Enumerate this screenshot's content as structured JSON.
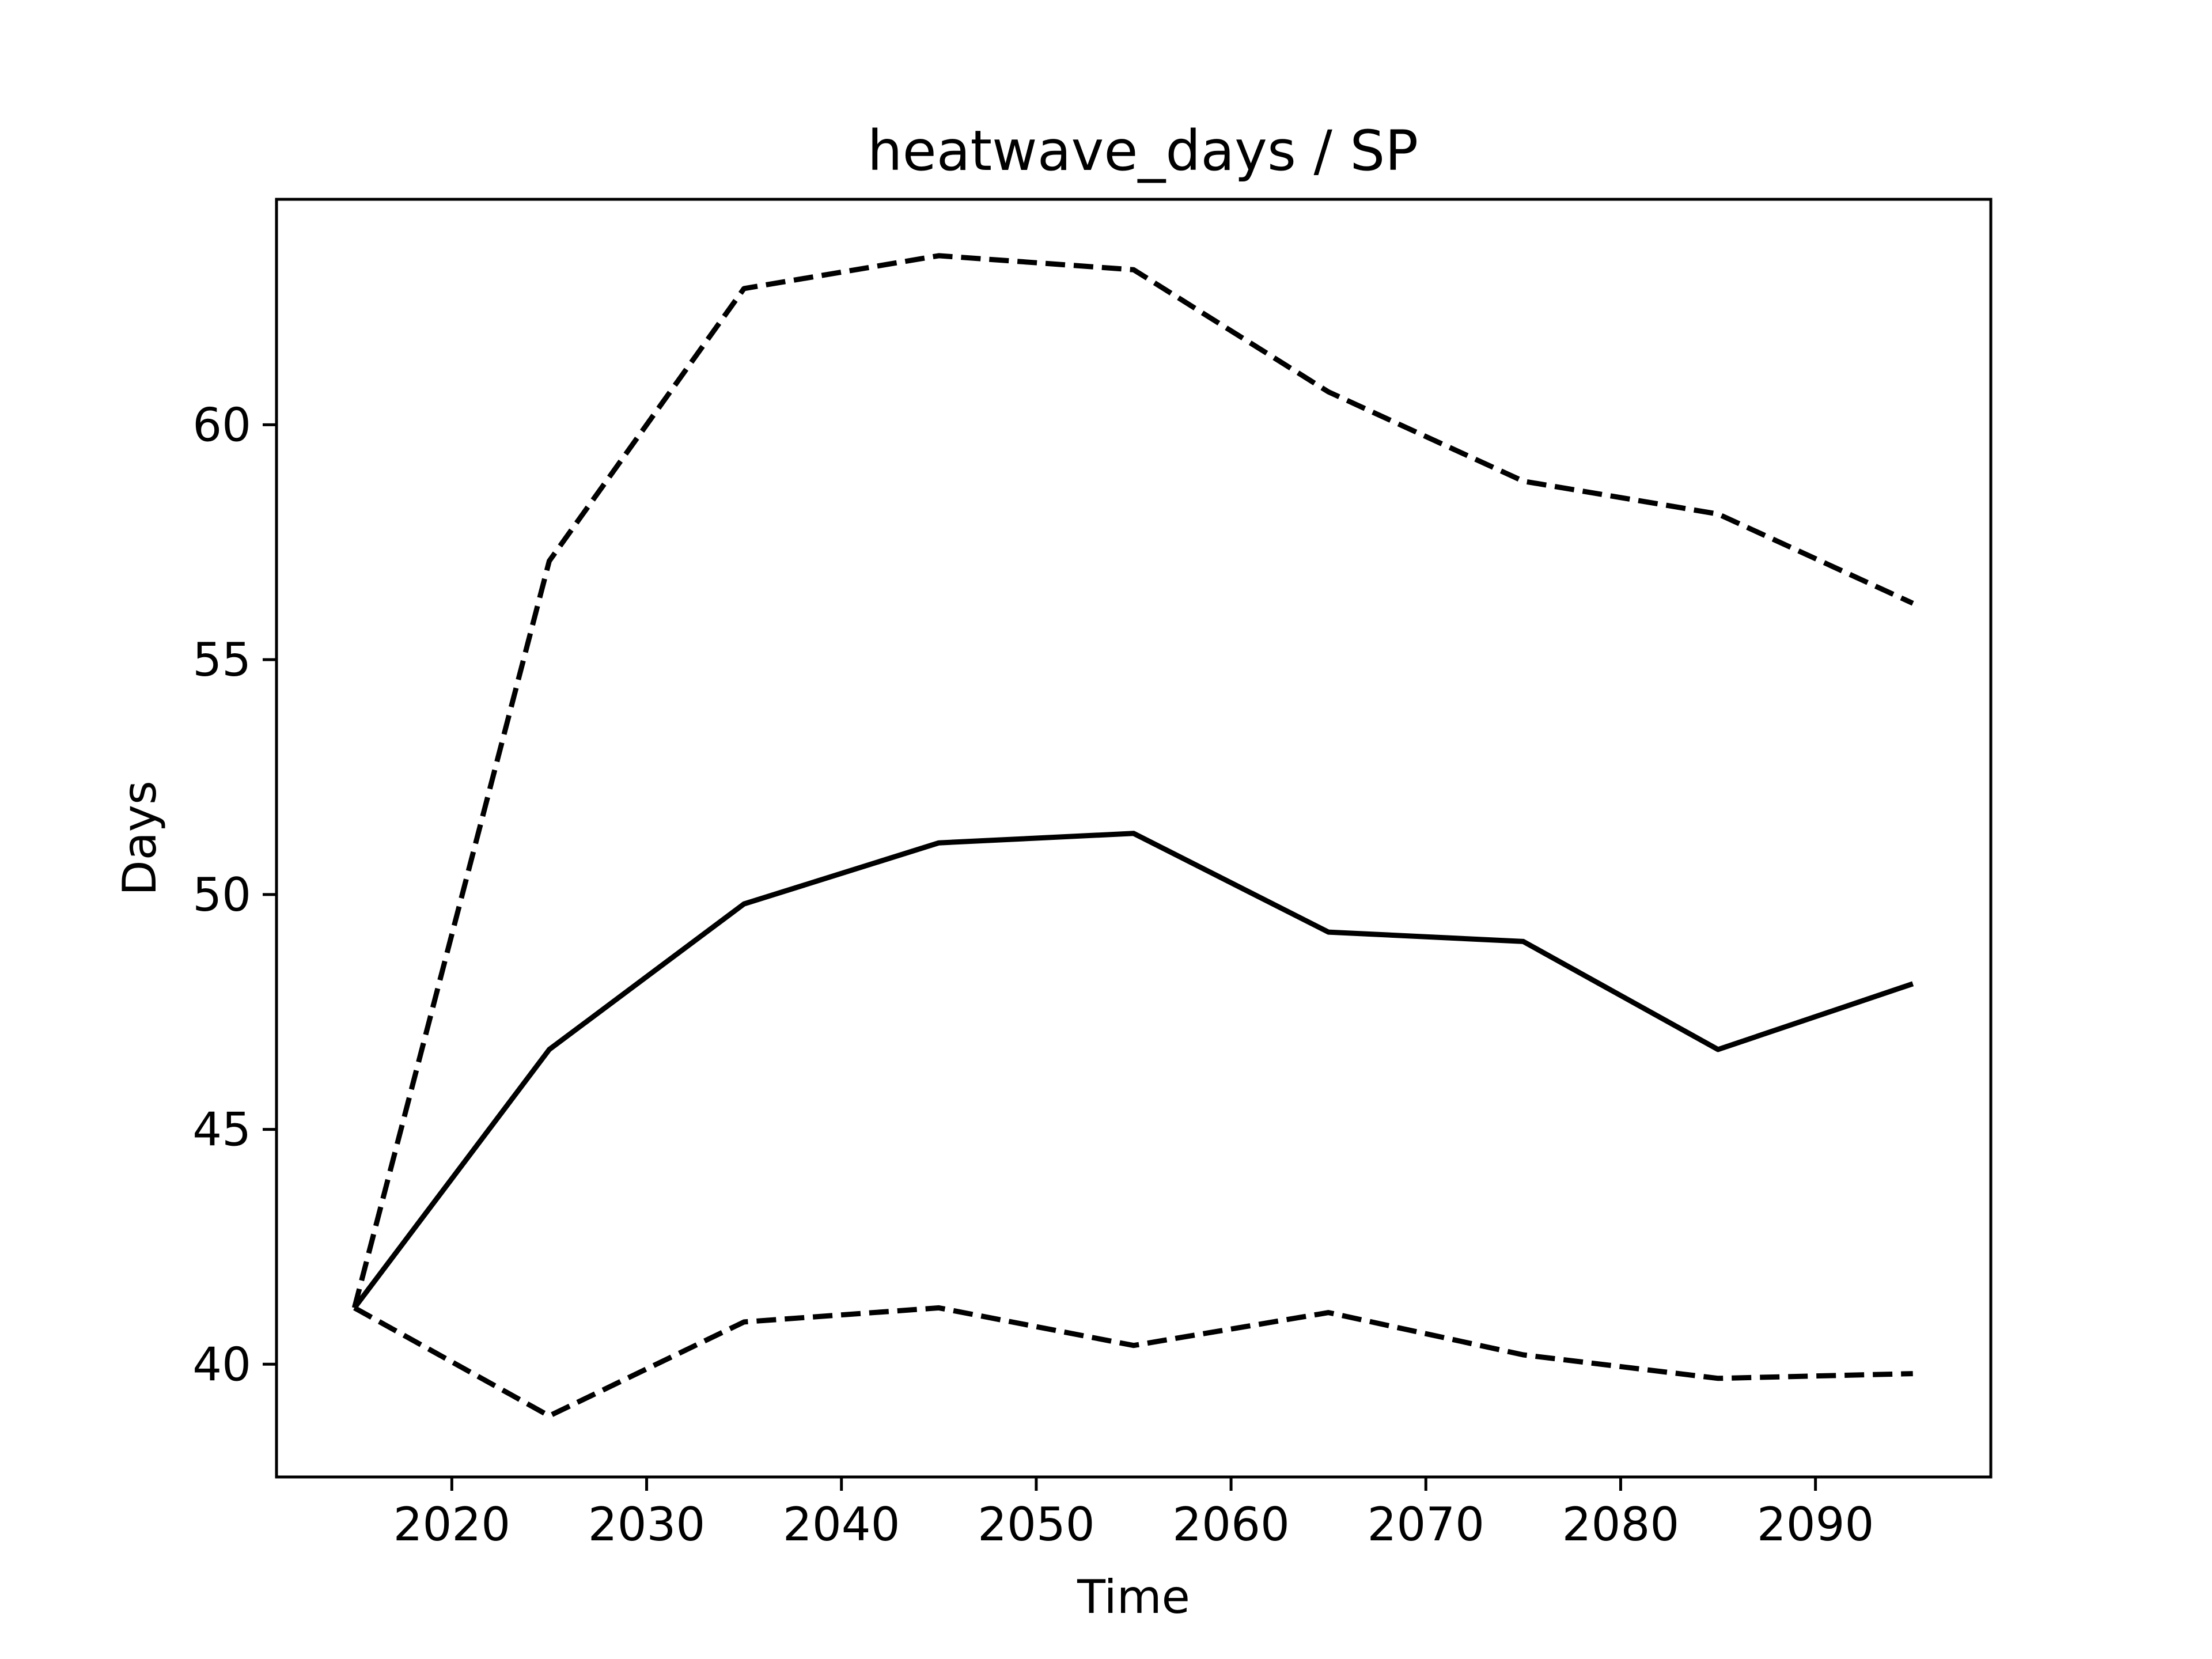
{
  "chart_data": {
    "type": "line",
    "title": "heatwave_days / SP",
    "xlabel": "Time",
    "ylabel": "Days",
    "xlim": [
      2011,
      2099
    ],
    "ylim": [
      37.6,
      64.8
    ],
    "xticks": [
      2020,
      2030,
      2040,
      2050,
      2060,
      2070,
      2080,
      2090
    ],
    "yticks": [
      40,
      45,
      50,
      55,
      60
    ],
    "grid": false,
    "line_color": "#000000",
    "x": [
      2015,
      2025,
      2035,
      2045,
      2055,
      2065,
      2075,
      2085,
      2095
    ],
    "series": [
      {
        "style": "dashed",
        "values": [
          41.2,
          57.1,
          62.9,
          63.6,
          63.3,
          60.7,
          58.8,
          58.1,
          56.2
        ]
      },
      {
        "style": "solid",
        "values": [
          41.2,
          46.7,
          49.8,
          51.1,
          51.3,
          49.2,
          49.0,
          46.7,
          48.1
        ]
      },
      {
        "style": "dashed",
        "values": [
          41.2,
          38.9,
          40.9,
          41.2,
          40.4,
          41.1,
          40.2,
          39.7,
          39.8
        ]
      }
    ]
  }
}
